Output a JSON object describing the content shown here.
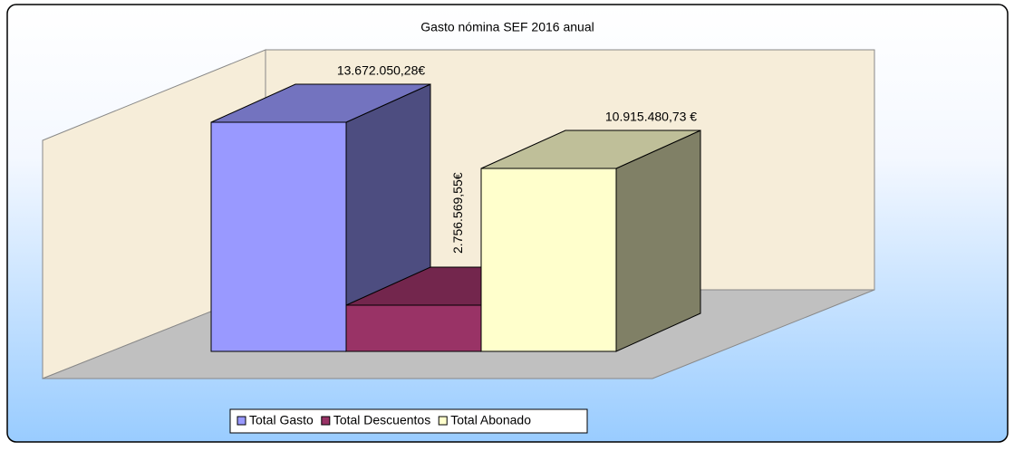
{
  "chart_data": {
    "type": "bar3d",
    "title": "Gasto nómina SEF 2016 anual",
    "legend": "bottom",
    "series": [
      {
        "name": "Total Gasto",
        "color": "#9999ff",
        "values": [
          13672050.28
        ],
        "value_labels": [
          "13.672.050,28€"
        ]
      },
      {
        "name": "Total Descuentos",
        "color": "#993366",
        "values": [
          2756569.55
        ],
        "value_labels": [
          "2.756.569,55€"
        ]
      },
      {
        "name": "Total Abonado",
        "color": "#ffffcc",
        "values": [
          10915480.73
        ],
        "value_labels": [
          "10.915.480,73 €"
        ]
      }
    ]
  }
}
